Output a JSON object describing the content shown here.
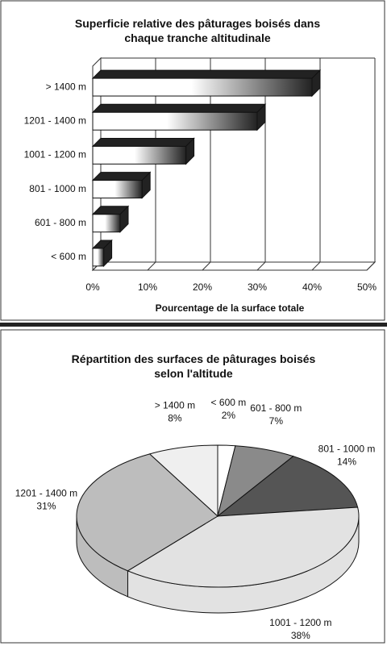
{
  "chart_data": [
    {
      "type": "bar3d",
      "title": "Superficie relative des pâturages boisés dans chaque tranche altitudinale",
      "categories": [
        "> 1400 m",
        "1201 - 1400 m",
        "1001 - 1200 m",
        "801 - 1000 m",
        "601 - 800 m",
        "< 600 m"
      ],
      "values": [
        40,
        30,
        17,
        9,
        5,
        2
      ],
      "xlim": [
        0,
        50
      ],
      "xticks": [
        {
          "value": 0,
          "label": "0%"
        },
        {
          "value": 10,
          "label": "10%"
        },
        {
          "value": 20,
          "label": "20%"
        },
        {
          "value": 30,
          "label": "30%"
        },
        {
          "value": 40,
          "label": "40%"
        },
        {
          "value": 50,
          "label": "50%"
        }
      ],
      "x_label": "Pourcentage de la surface totale",
      "grid": true,
      "color": "#222222"
    },
    {
      "type": "pie3d",
      "title": "Répartition des surfaces de pâturages boisés selon l'altitude",
      "categories": [
        "< 600 m",
        "601 - 800 m",
        "801 - 1000 m",
        "1001 - 1200 m",
        "1201 - 1400 m",
        "> 1400 m"
      ],
      "values": [
        2,
        7,
        14,
        38,
        31,
        8
      ],
      "value_labels": [
        "2%",
        "7%",
        "14%",
        "38%",
        "31%",
        "8%"
      ],
      "colors": [
        "#ffffff",
        "#8a8a8a",
        "#555555",
        "#e2e2e2",
        "#bdbdbd",
        "#efefef"
      ]
    }
  ]
}
